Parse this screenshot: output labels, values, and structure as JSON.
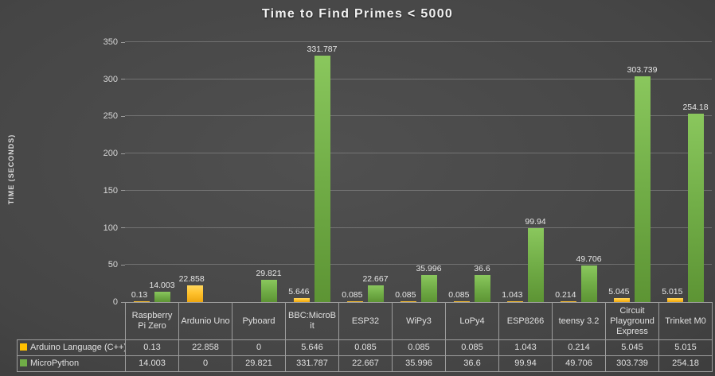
{
  "chart_data": {
    "type": "bar",
    "title": "Time to Find Primes < 5000",
    "xlabel": "",
    "ylabel": "TIME (SECONDS)",
    "ylim": [
      0,
      350
    ],
    "y_ticks": [
      0,
      50,
      100,
      150,
      200,
      250,
      300,
      350
    ],
    "grid": true,
    "legend_position": "data-table-left",
    "background": "#454545",
    "categories": [
      "Raspberry Pi Zero",
      "Ardunio Uno",
      "Pyboard",
      "BBC:MicroBit",
      "ESP32",
      "WiPy3",
      "LoPy4",
      "ESP8266",
      "teensy 3.2",
      "Circuit Playground Express",
      "Trinket M0"
    ],
    "series": [
      {
        "name": "Arduino Language (C++)",
        "color": "#FFC000",
        "values": [
          0.13,
          22.858,
          0,
          5.646,
          0.085,
          0.085,
          0.085,
          1.043,
          0.214,
          5.045,
          5.015
        ]
      },
      {
        "name": "MicroPython",
        "color": "#70AD47",
        "values": [
          14.003,
          0,
          29.821,
          331.787,
          22.667,
          35.996,
          36.6,
          99.94,
          49.706,
          303.739,
          254.18
        ]
      }
    ]
  }
}
